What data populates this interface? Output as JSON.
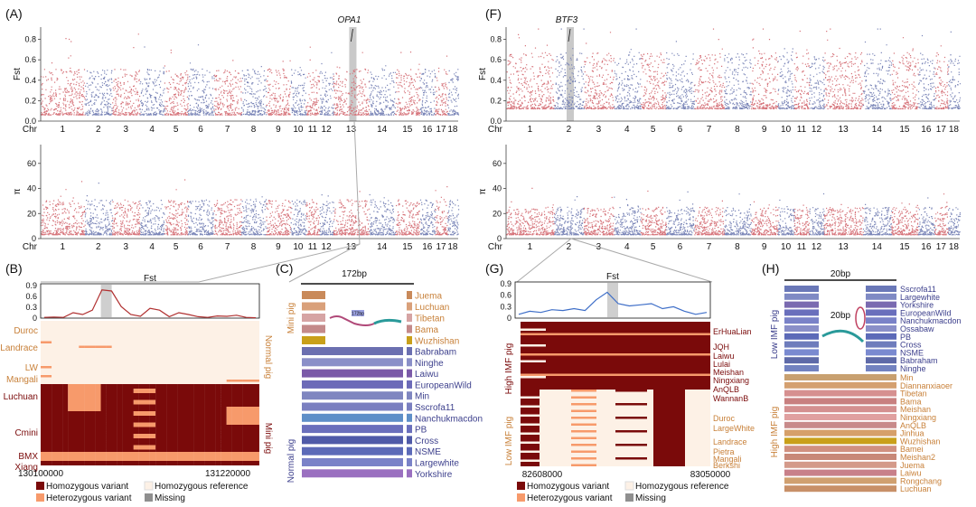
{
  "colors": {
    "red": "#d6737a",
    "blue": "#7b86b8",
    "dark": "#7a0a0a",
    "hom_ref": "#fdf1e6",
    "het": "#f79a6b",
    "missing": "#8f8f8f",
    "fst_line_b": "#b03030",
    "fst_line_g": "#3f6fc8",
    "orange": "#c8813a",
    "navy": "#3c3f8c"
  },
  "panels": {
    "A": "(A)",
    "B": "(B)",
    "C": "(C)",
    "F": "(F)",
    "G": "(G)",
    "H": "(H)"
  },
  "manhattan": {
    "chr_label": "Chr",
    "chromosomes": [
      "1",
      "2",
      "3",
      "4",
      "5",
      "6",
      "7",
      "8",
      "9",
      "10",
      "11",
      "12",
      "13",
      "14",
      "15",
      "16",
      "17",
      "18"
    ],
    "ylabel_fst": "Fst",
    "ylabel_pi": "π",
    "fst_ticks": [
      "0.0",
      "0.2",
      "0.4",
      "0.6",
      "0.8"
    ],
    "pi_ticks": [
      "0",
      "20",
      "40",
      "60"
    ],
    "left_gene": "OPA1",
    "right_gene": "BTF3"
  },
  "panelB": {
    "title": "Fst",
    "yticks": [
      "0",
      "0.3",
      "0.6",
      "0.9"
    ],
    "fst_values": [
      0.02,
      0.03,
      0.02,
      0.15,
      0.1,
      0.22,
      0.78,
      0.75,
      0.32,
      0.1,
      0.05,
      0.27,
      0.22,
      0.04,
      0.15,
      0.1,
      0.04,
      0.02,
      0.06,
      0.05,
      0.08,
      0.02,
      0.01
    ],
    "xstart": "130100000",
    "xend": "131220000",
    "groups_left": [
      "Duroc",
      "Landrace",
      "LW",
      "Mangali",
      "Luchuan",
      "Cmini",
      "BMX",
      "Xiang"
    ],
    "right_top": "Normal pig",
    "right_bottom": "Mini pig"
  },
  "panelC": {
    "title": "172bp",
    "insert_label": "172bp",
    "mini_label": "Mini pig",
    "normal_label": "Normal pig",
    "mini_breeds": [
      "Juema",
      "Luchuan",
      "Tibetan",
      "Bama",
      "Wuzhishan"
    ],
    "normal_breeds": [
      "Babrabam",
      "Ninghe",
      "Laiwu",
      "EuropeanWild",
      "Min",
      "Sscrofa11",
      "Nanchukmacdon",
      "PB",
      "Cross",
      "NSME",
      "Largewhite",
      "Yorkshire"
    ]
  },
  "panelG": {
    "title": "Fst",
    "yticks": [
      "0",
      "0.3",
      "0.6",
      "0.9"
    ],
    "fst_values": [
      0.1,
      0.18,
      0.15,
      0.22,
      0.2,
      0.25,
      0.2,
      0.48,
      0.68,
      0.38,
      0.32,
      0.35,
      0.38,
      0.25,
      0.3,
      0.18,
      0.1,
      0.15
    ],
    "xstart": "82608000",
    "xend": "83050000",
    "high_label": "High IMF pig",
    "low_label": "Low IMF pig",
    "high_breeds": [
      "ErHuaLian",
      "JQH",
      "Laiwu",
      "Lulai",
      "Meishan",
      "Ningxiang",
      "AnQLB",
      "WannanB"
    ],
    "low_breeds": [
      "Duroc",
      "LargeWhite",
      "Landrace",
      "Pietra",
      "Mangali",
      "Berkshi"
    ]
  },
  "panelH": {
    "title": "20bp",
    "insert_label": "20bp",
    "low_label": "Low IMF pig",
    "high_label": "High IMF pig",
    "low_breeds": [
      "Sscrofa11",
      "Largewhite",
      "Yorkshire",
      "EuropeanWild",
      "Nanchukmacdon",
      "Ossabaw",
      "PB",
      "Cross",
      "NSME",
      "Babraham",
      "Ninghe"
    ],
    "high_breeds": [
      "Min",
      "Diannanxiaoer",
      "Tibetan",
      "Bama",
      "Meishan",
      "Ningxiang",
      "AnQLB",
      "Jinhua",
      "Wuzhishan",
      "Bamei",
      "Meishan2",
      "Juema",
      "Laiwu",
      "Rongchang",
      "Luchuan"
    ]
  },
  "legend": {
    "hom_var": "Homozygous variant",
    "hom_ref": "Homozygous reference",
    "het": "Heterozygous variant",
    "missing": "Missing"
  }
}
